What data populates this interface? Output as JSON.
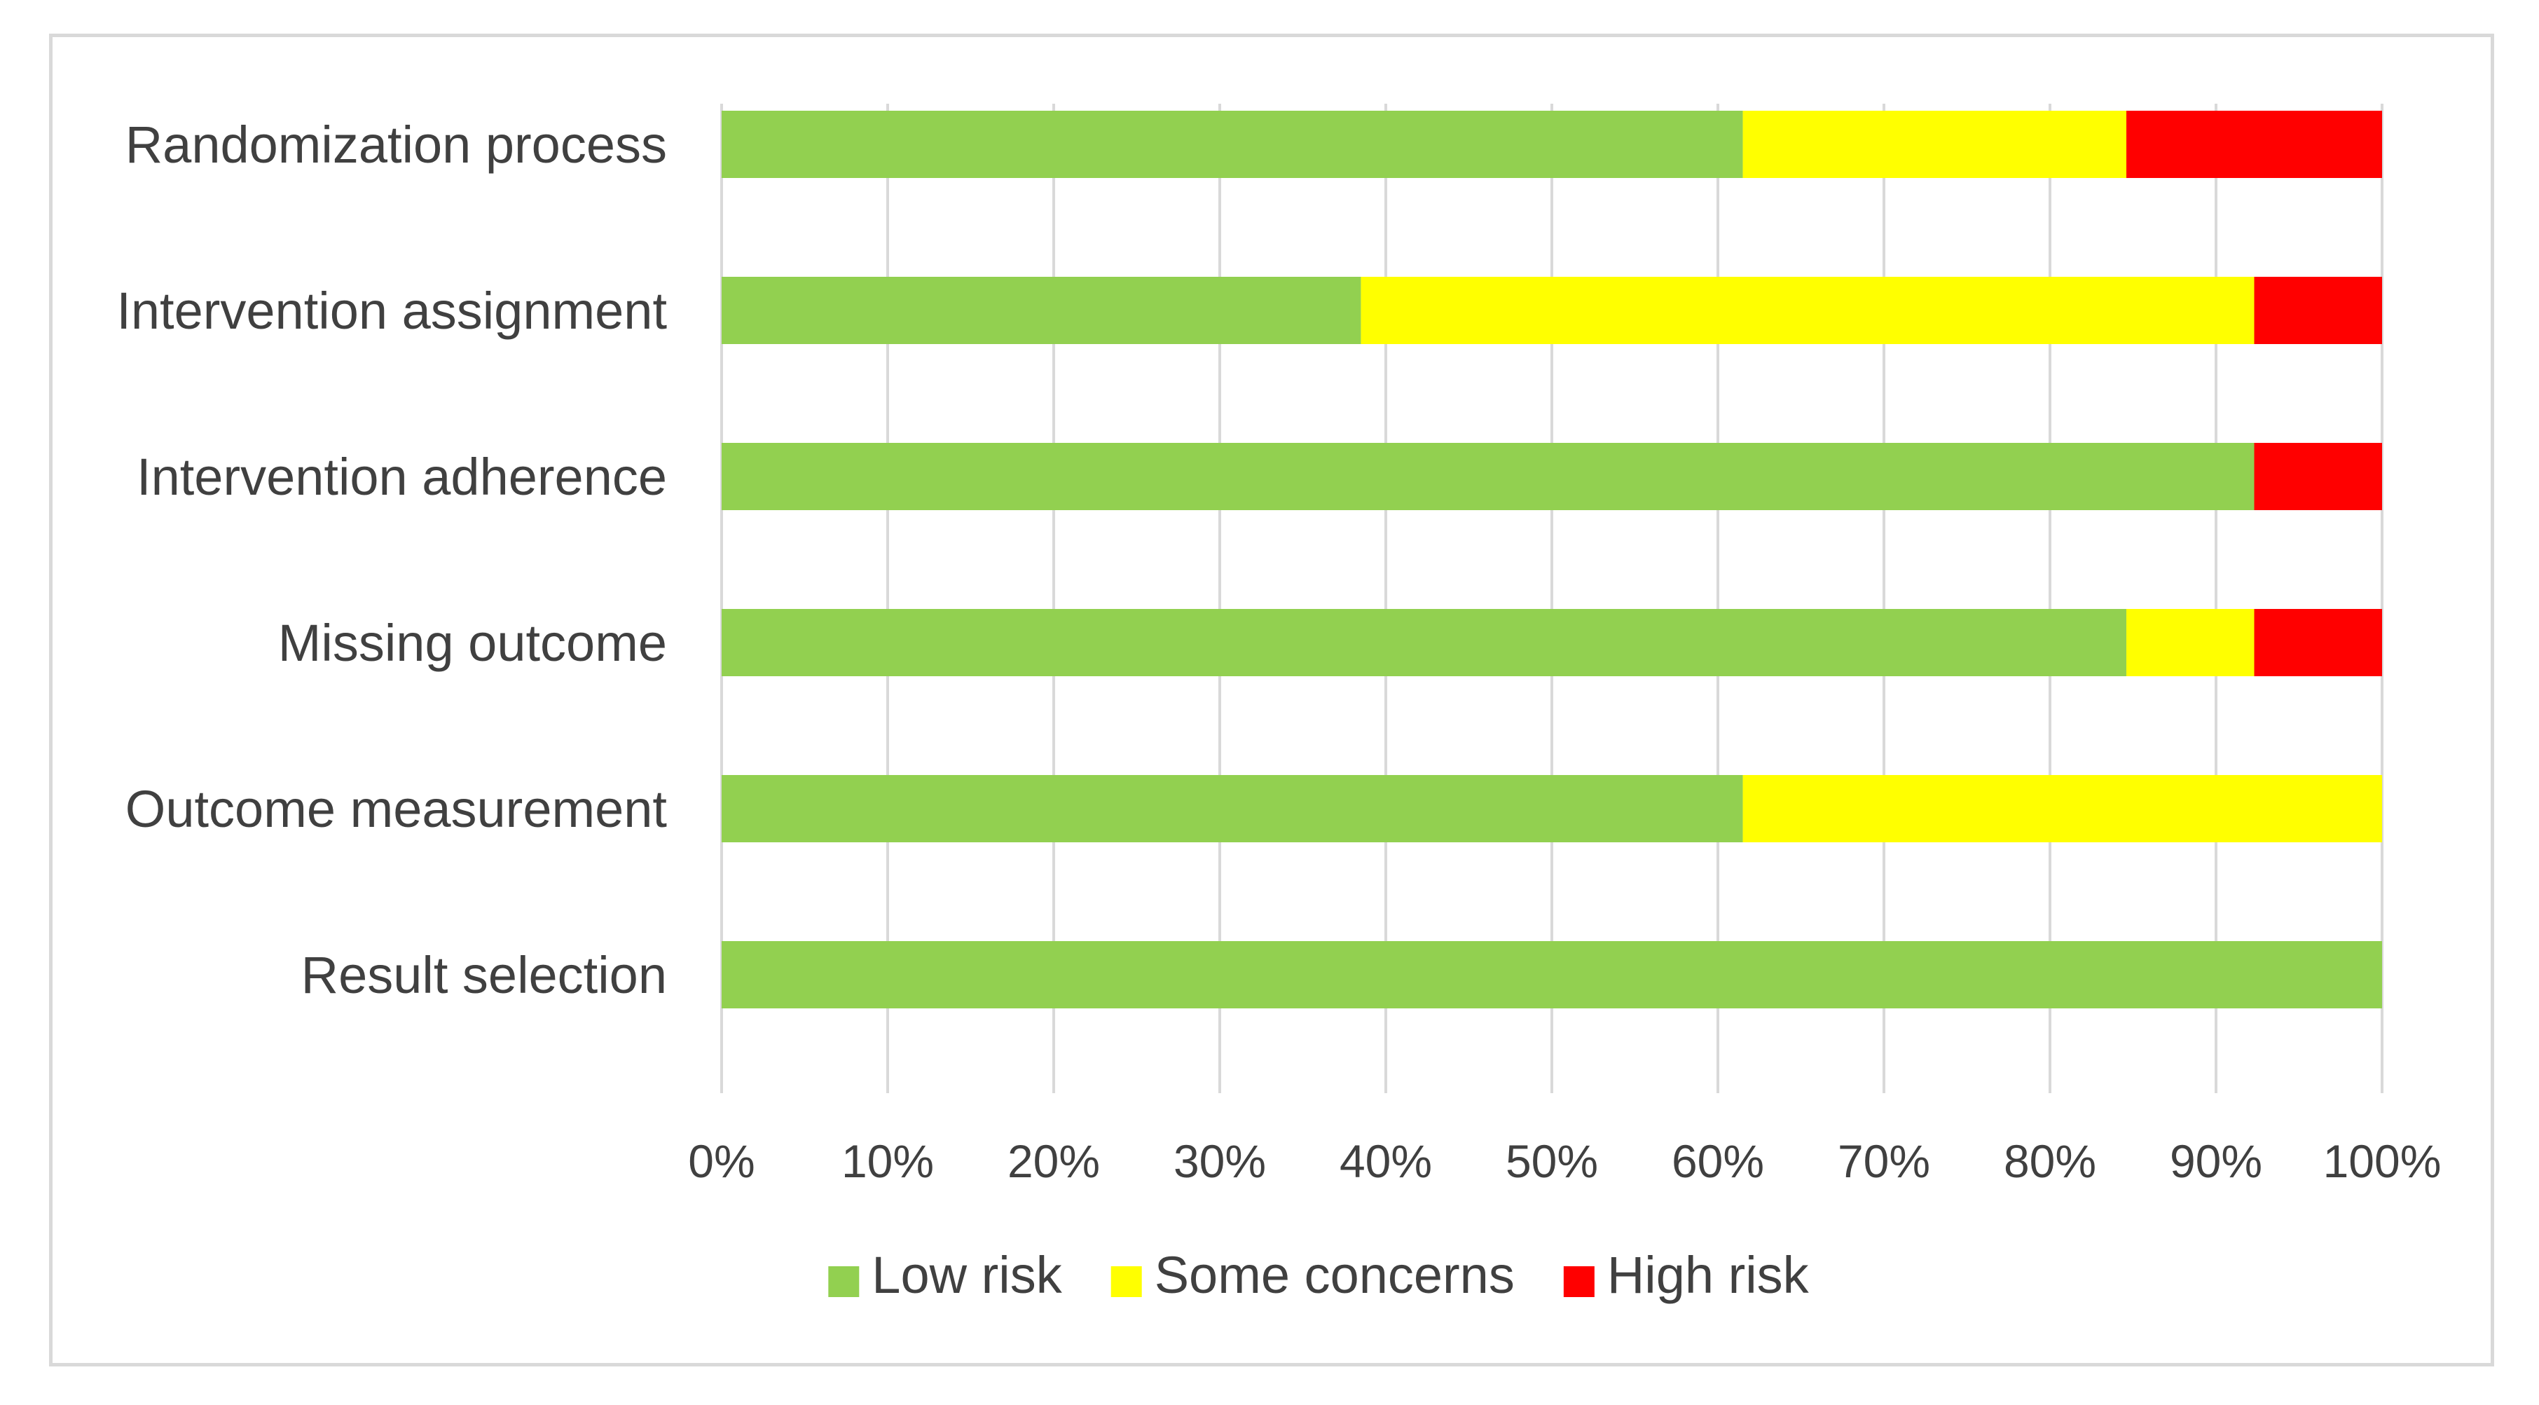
{
  "chart_data": {
    "type": "bar",
    "orientation": "horizontal",
    "stacked": true,
    "percent_stacked": true,
    "title": "",
    "xlabel": "",
    "ylabel": "",
    "xlim": [
      0,
      100
    ],
    "x_ticks": [
      "0%",
      "10%",
      "20%",
      "30%",
      "40%",
      "50%",
      "60%",
      "70%",
      "80%",
      "90%",
      "100%"
    ],
    "grid": "vertical",
    "legend_position": "bottom",
    "categories": [
      "Randomization process",
      "Intervention assignment",
      "Intervention adherence",
      "Missing outcome",
      "Outcome measurement",
      "Result selection"
    ],
    "series": [
      {
        "name": "Low risk",
        "color": "#92d050",
        "values": [
          61.5,
          38.5,
          92.3,
          84.6,
          61.5,
          100
        ]
      },
      {
        "name": "Some concerns",
        "color": "#ffff00",
        "values": [
          23.1,
          53.8,
          0,
          7.7,
          38.5,
          0
        ]
      },
      {
        "name": "High risk",
        "color": "#ff0000",
        "values": [
          15.4,
          7.7,
          7.7,
          7.7,
          0,
          0
        ]
      }
    ]
  }
}
